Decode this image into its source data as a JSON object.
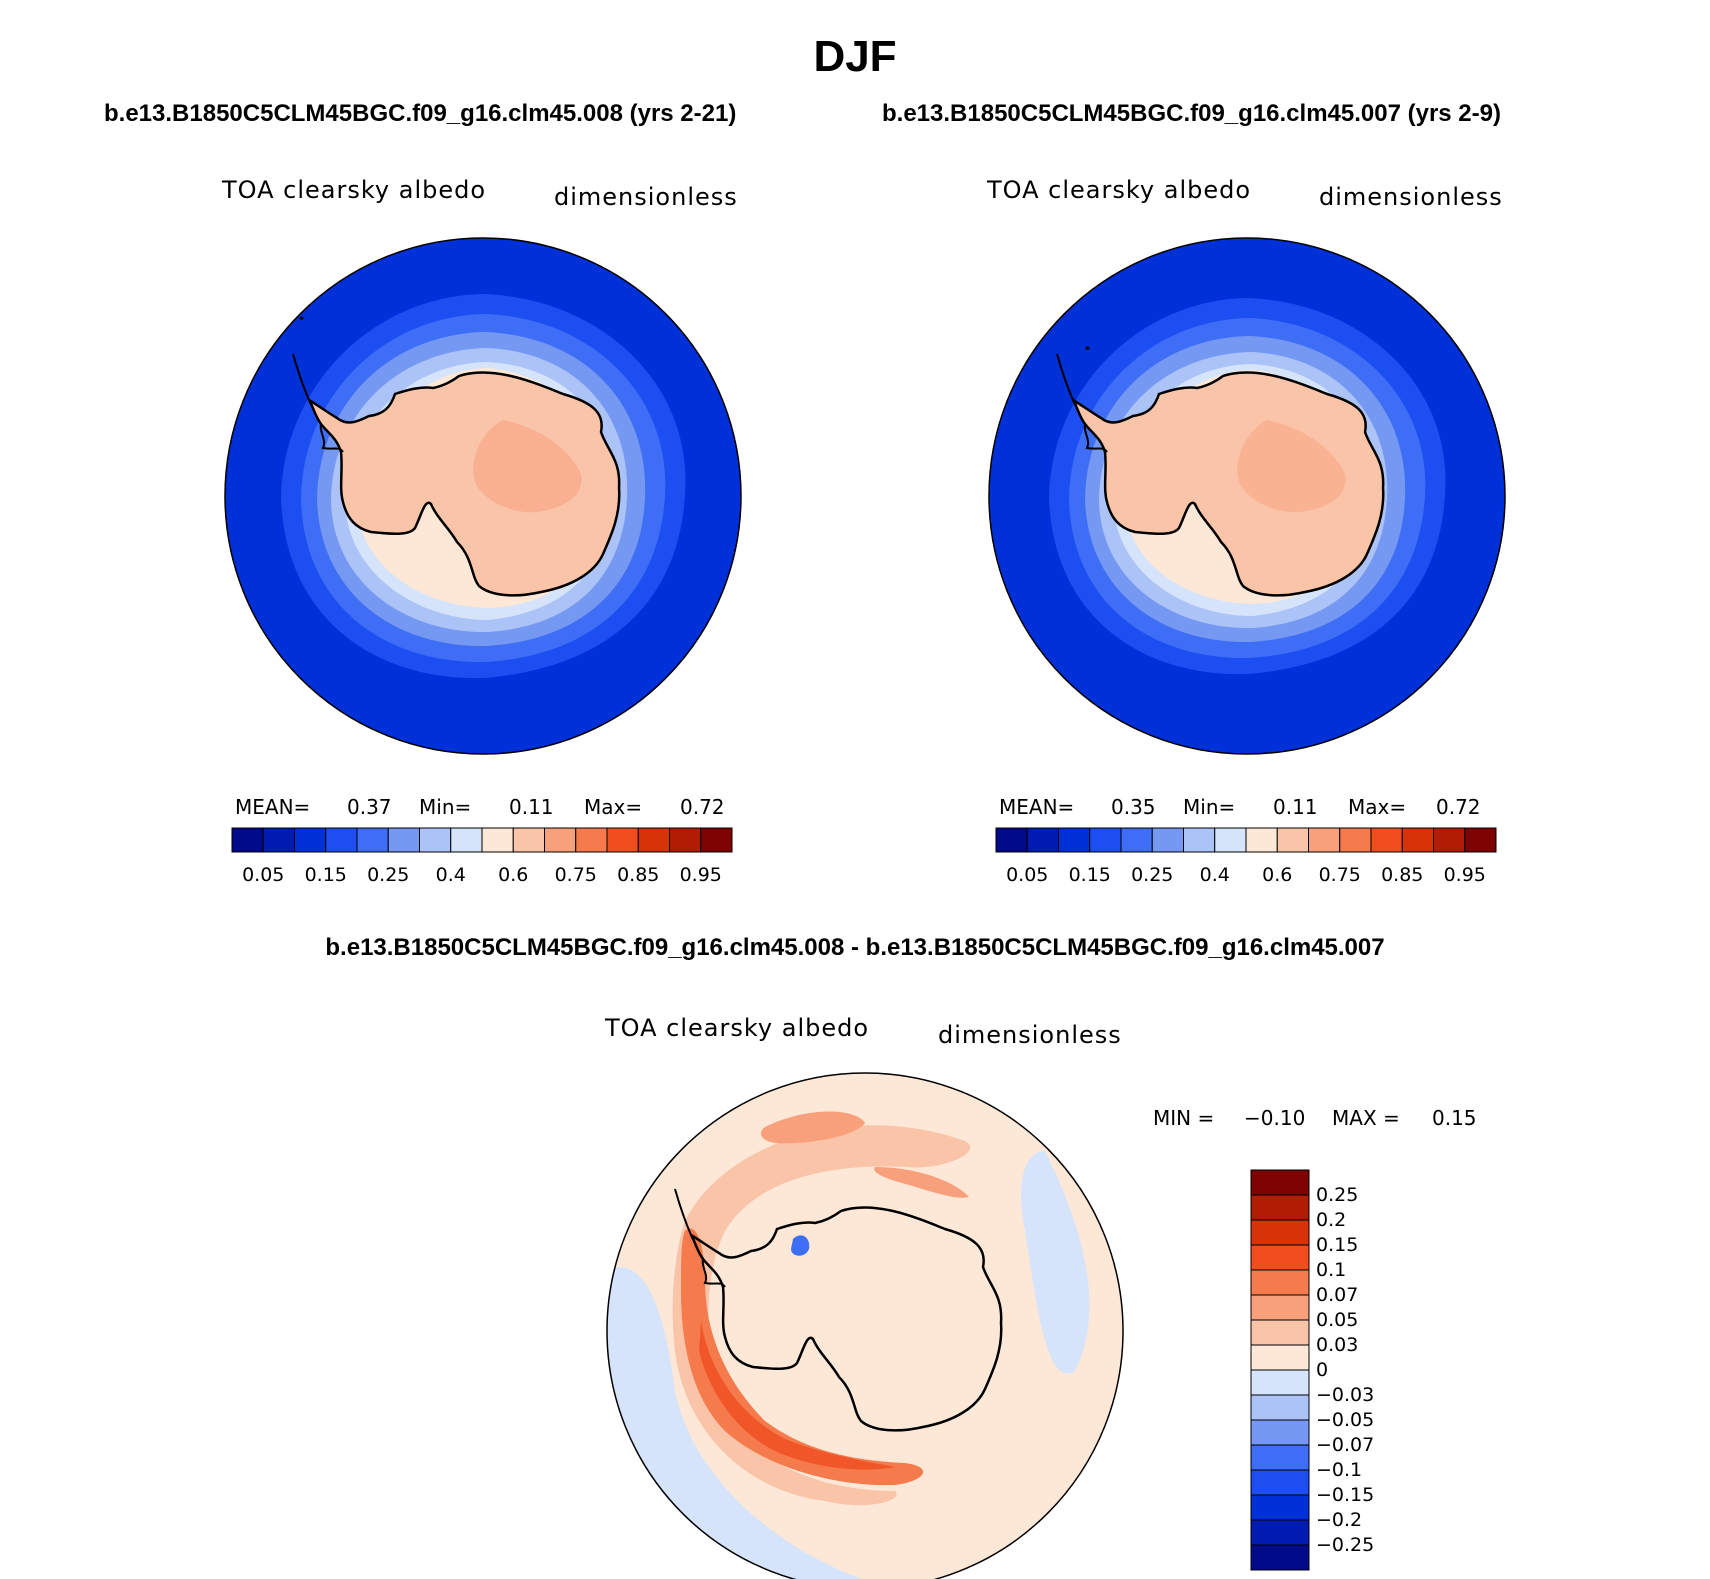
{
  "figure": {
    "season": "DJF",
    "case1_title": "b.e13.B1850C5CLM45BGC.f09_g16.clm45.008 (yrs 2-21)",
    "case2_title": "b.e13.B1850C5CLM45BGC.f09_g16.clm45.007 (yrs 2-9)",
    "diff_title": "b.e13.B1850C5CLM45BGC.f09_g16.clm45.008 - b.e13.B1850C5CLM45BGC.f09_g16.clm45.007"
  },
  "panels": [
    {
      "variable": "TOA clearsky albedo",
      "units": "dimensionless",
      "mean_label": "MEAN=",
      "mean": "0.37",
      "min_label": "Min=",
      "min": "0.11",
      "max_label": "Max=",
      "max": "0.72"
    },
    {
      "variable": "TOA clearsky albedo",
      "units": "dimensionless",
      "mean_label": "MEAN=",
      "mean": "0.35",
      "min_label": "Min=",
      "min": "0.11",
      "max_label": "Max=",
      "max": "0.72"
    }
  ],
  "diff_panel": {
    "variable": "TOA clearsky albedo",
    "units": "dimensionless",
    "min_label": "MIN =",
    "min": "−0.10",
    "max_label": "MAX =",
    "max": "0.15"
  },
  "colorbar_main": {
    "colors": [
      "#000a8a",
      "#001bb0",
      "#0030d8",
      "#1c4ef2",
      "#3e6ef5",
      "#7599f2",
      "#abc3f7",
      "#d5e4fb",
      "#fde8d8",
      "#f9c4a8",
      "#f8a07b",
      "#f57a4c",
      "#f04e1f",
      "#d63308",
      "#b01c04",
      "#7e0403"
    ],
    "tick_labels": [
      "0.05",
      "0.15",
      "0.25",
      "0.4",
      "0.6",
      "0.75",
      "0.85",
      "0.95"
    ]
  },
  "colorbar_diff": {
    "colors_top_to_bottom": [
      "#7e0403",
      "#b01c04",
      "#d63308",
      "#f04e1f",
      "#f57a4c",
      "#f8a07b",
      "#f9c4a8",
      "#fde8d8",
      "#d5e4fb",
      "#abc3f7",
      "#7599f2",
      "#3e6ef5",
      "#1c4ef2",
      "#0030d8",
      "#001bb0",
      "#000a8a"
    ],
    "tick_labels": [
      "0.25",
      "0.2",
      "0.15",
      "0.1",
      "0.07",
      "0.05",
      "0.03",
      "0",
      "−0.03",
      "−0.05",
      "−0.07",
      "−0.1",
      "−0.15",
      "−0.2",
      "−0.25"
    ]
  },
  "map_colors": {
    "ocean_low": "#0030d8",
    "ice_high": "#f9c4a8",
    "ice_peak": "#f8a07b",
    "diff_zero": "#fde8d8",
    "diff_neg": "#d5e4fb",
    "coastline": "#000000"
  }
}
